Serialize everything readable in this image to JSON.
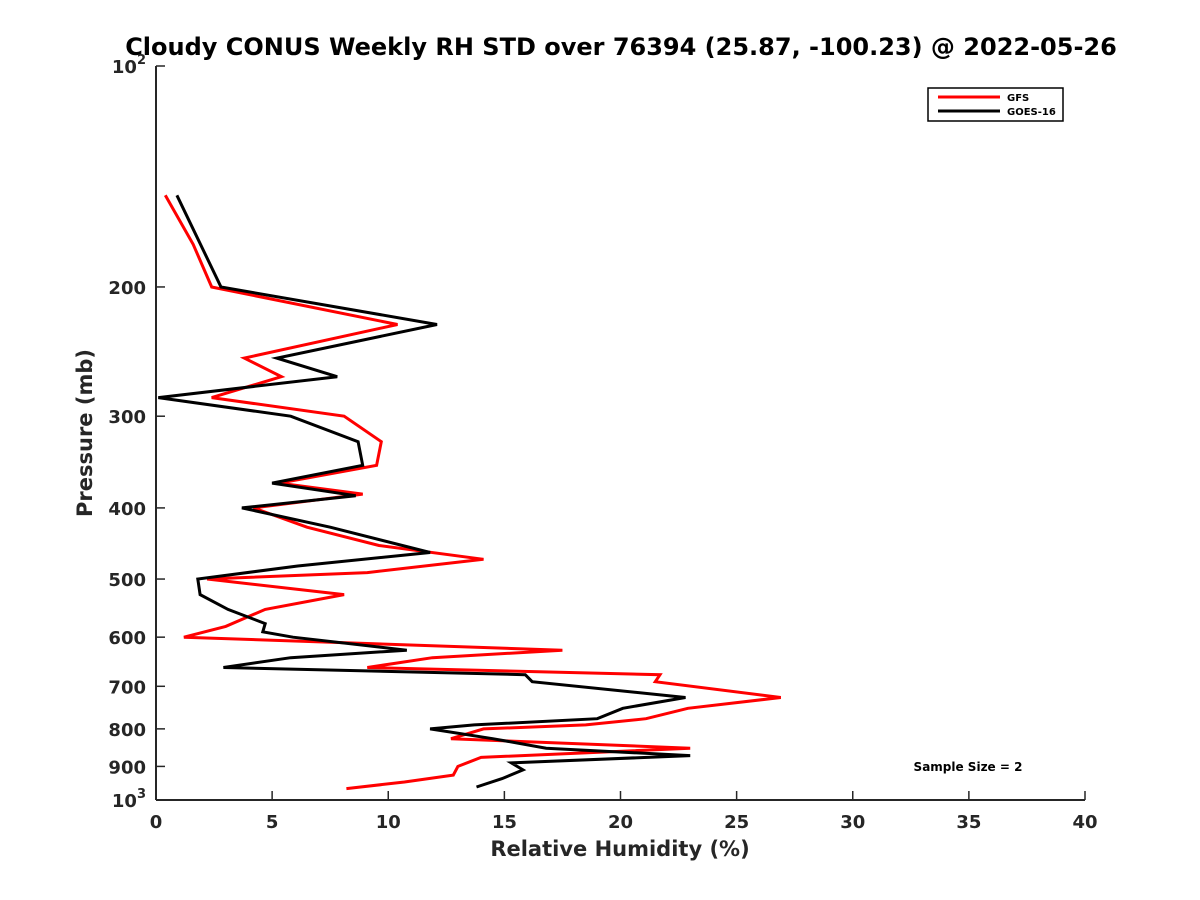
{
  "chart_data": {
    "type": "line",
    "title": "Cloudy CONUS Weekly RH STD over 76394 (25.87, -100.23) @ 2022-05-26",
    "xlabel": "Relative Humidity (%)",
    "ylabel": "Pressure (mb)",
    "xlim": [
      0,
      40
    ],
    "ylim": [
      100,
      1000
    ],
    "y_scale": "log",
    "y_reversed": true,
    "grid": false,
    "legend_position": "top-right",
    "x_ticks": [
      "0",
      "5",
      "10",
      "15",
      "20",
      "25",
      "30",
      "35",
      "40"
    ],
    "x_tick_values": [
      0,
      5,
      10,
      15,
      20,
      25,
      30,
      35,
      40
    ],
    "y_ticks": [
      {
        "value": 100,
        "base": "10",
        "exp": "2"
      },
      {
        "value": 200,
        "label": "200"
      },
      {
        "value": 300,
        "label": "300"
      },
      {
        "value": 400,
        "label": "400"
      },
      {
        "value": 500,
        "label": "500"
      },
      {
        "value": 600,
        "label": "600"
      },
      {
        "value": 700,
        "label": "700"
      },
      {
        "value": 800,
        "label": "800"
      },
      {
        "value": 900,
        "label": "900"
      },
      {
        "value": 1000,
        "base": "10",
        "exp": "3"
      }
    ],
    "series": [
      {
        "name": "GFS",
        "color": "#ff0000",
        "points": [
          [
            0.4,
            150
          ],
          [
            1.6,
            175
          ],
          [
            2.4,
            200
          ],
          [
            10.4,
            225
          ],
          [
            3.8,
            250
          ],
          [
            5.4,
            265
          ],
          [
            2.4,
            283
          ],
          [
            8.1,
            300
          ],
          [
            9.7,
            325
          ],
          [
            9.5,
            350
          ],
          [
            5.3,
            370
          ],
          [
            8.9,
            383
          ],
          [
            4.2,
            400
          ],
          [
            6.5,
            425
          ],
          [
            9.6,
            450
          ],
          [
            14.1,
            470
          ],
          [
            9.1,
            490
          ],
          [
            2.2,
            500
          ],
          [
            8.1,
            525
          ],
          [
            4.7,
            550
          ],
          [
            3.0,
            580
          ],
          [
            1.2,
            600
          ],
          [
            17.5,
            625
          ],
          [
            11.9,
            640
          ],
          [
            9.1,
            660
          ],
          [
            21.7,
            675
          ],
          [
            21.5,
            690
          ],
          [
            26.9,
            725
          ],
          [
            22.9,
            750
          ],
          [
            21.1,
            775
          ],
          [
            18.5,
            790
          ],
          [
            14.1,
            800
          ],
          [
            12.7,
            825
          ],
          [
            23.0,
            850
          ],
          [
            14.0,
            875
          ],
          [
            13.0,
            900
          ],
          [
            12.8,
            925
          ],
          [
            10.7,
            945
          ],
          [
            8.2,
            965
          ]
        ]
      },
      {
        "name": "GOES-16",
        "color": "#000000",
        "points": [
          [
            0.9,
            150
          ],
          [
            2.8,
            200
          ],
          [
            12.1,
            225
          ],
          [
            5.2,
            250
          ],
          [
            7.8,
            265
          ],
          [
            0.1,
            283
          ],
          [
            5.8,
            300
          ],
          [
            8.7,
            325
          ],
          [
            8.9,
            350
          ],
          [
            5.0,
            370
          ],
          [
            8.6,
            385
          ],
          [
            3.7,
            400
          ],
          [
            7.5,
            425
          ],
          [
            11.8,
            460
          ],
          [
            6.1,
            480
          ],
          [
            1.8,
            500
          ],
          [
            1.9,
            525
          ],
          [
            3.1,
            550
          ],
          [
            4.7,
            575
          ],
          [
            4.6,
            590
          ],
          [
            5.9,
            600
          ],
          [
            10.8,
            625
          ],
          [
            5.8,
            640
          ],
          [
            2.9,
            660
          ],
          [
            15.9,
            675
          ],
          [
            16.2,
            690
          ],
          [
            22.8,
            725
          ],
          [
            20.1,
            750
          ],
          [
            19.0,
            775
          ],
          [
            13.7,
            790
          ],
          [
            11.8,
            800
          ],
          [
            14.5,
            825
          ],
          [
            16.8,
            850
          ],
          [
            23.0,
            870
          ],
          [
            15.3,
            890
          ],
          [
            15.8,
            910
          ],
          [
            14.9,
            935
          ],
          [
            13.8,
            960
          ]
        ]
      }
    ],
    "annotations": [
      "Sample Size = 2"
    ]
  }
}
